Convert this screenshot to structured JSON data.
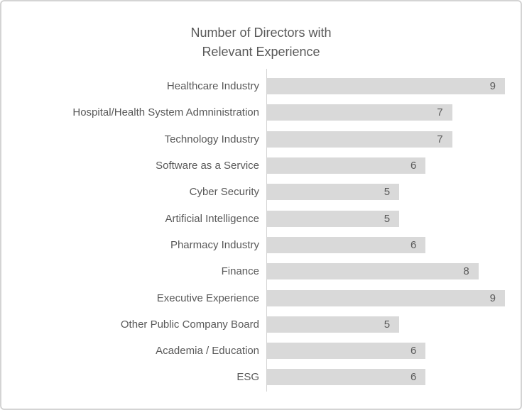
{
  "window": {
    "background": "#ffffff",
    "border_color": "#d4d4d4"
  },
  "chart_data": {
    "type": "bar",
    "orientation": "horizontal",
    "title": "Number of Directors with Relevant Experience",
    "title_lines": [
      "Number of Directors with",
      "Relevant Experience"
    ],
    "categories": [
      "Healthcare Industry",
      "Hospital/Health System Admninistration",
      "Technology Industry",
      "Software as a Service",
      "Cyber Security",
      "Artificial Intelligence",
      "Pharmacy Industry",
      "Finance",
      "Executive Experience",
      "Other Public Company Board",
      "Academia / Education",
      "ESG"
    ],
    "values": [
      9,
      7,
      7,
      6,
      5,
      5,
      6,
      8,
      9,
      5,
      6,
      6
    ],
    "xlabel": "",
    "ylabel": "",
    "xlim": [
      0,
      9
    ],
    "grid": false,
    "legend": false,
    "data_labels_shown": true,
    "bar_color": "#d9d9d9",
    "text_color": "#595959",
    "axis_line_color": "#d2d2d2"
  }
}
